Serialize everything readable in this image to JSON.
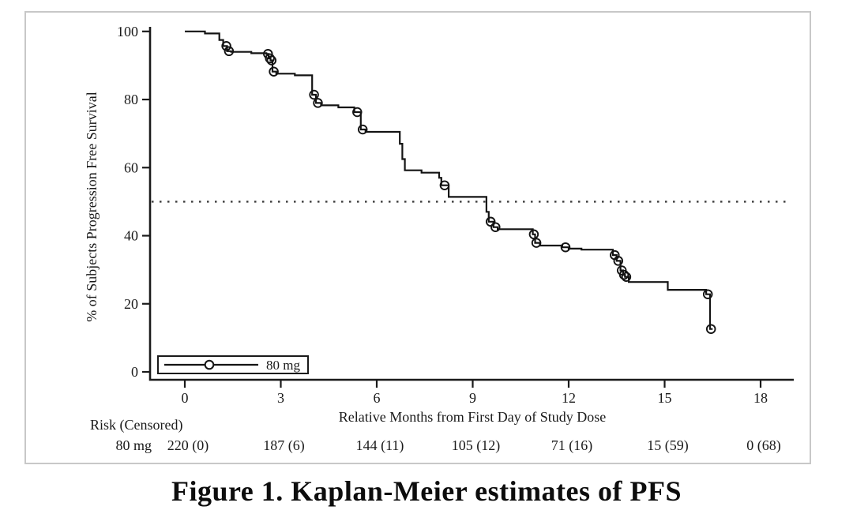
{
  "figure": {
    "caption": "Figure 1. Kaplan-Meier estimates of PFS"
  },
  "chart_data": {
    "type": "line",
    "subtype": "kaplan-meier-step-curve",
    "title": "",
    "xlabel": "Relative Months from First Day of Study Dose",
    "ylabel": "% of Subjects Progression Free Survival",
    "xlim": [
      -1.1,
      19.1
    ],
    "ylim": [
      0,
      103
    ],
    "x_ticks": [
      0,
      3,
      6,
      9,
      12,
      15,
      18
    ],
    "y_ticks": [
      0,
      20,
      40,
      60,
      80,
      100
    ],
    "grid": "off",
    "median_reference_line": {
      "y": 50,
      "style": "dotted"
    },
    "legend": {
      "position": "bottom-left-inside",
      "entries": [
        {
          "label": "80 mg",
          "marker": "open-circle-on-line"
        }
      ]
    },
    "series": [
      {
        "name": "80 mg",
        "steps": [
          [
            0,
            100
          ],
          [
            0.63,
            99.4
          ],
          [
            1.08,
            97.5
          ],
          [
            1.2,
            95.7
          ],
          [
            1.32,
            94.2
          ],
          [
            1.45,
            94.0
          ],
          [
            2.08,
            93.6
          ],
          [
            2.55,
            93.4
          ],
          [
            2.62,
            92.1
          ],
          [
            2.68,
            91.5
          ],
          [
            2.74,
            88.2
          ],
          [
            2.86,
            87.6
          ],
          [
            3.44,
            87.1
          ],
          [
            3.98,
            81.4
          ],
          [
            4.1,
            79.0
          ],
          [
            4.26,
            78.3
          ],
          [
            4.8,
            77.7
          ],
          [
            5.3,
            76.3
          ],
          [
            5.5,
            71.2
          ],
          [
            5.65,
            70.5
          ],
          [
            6.72,
            67.0
          ],
          [
            6.8,
            62.5
          ],
          [
            6.88,
            59.2
          ],
          [
            7.4,
            58.5
          ],
          [
            7.95,
            57.0
          ],
          [
            8.02,
            54.8
          ],
          [
            8.25,
            51.4
          ],
          [
            9.43,
            47.0
          ],
          [
            9.5,
            44.1
          ],
          [
            9.65,
            42.5
          ],
          [
            9.78,
            41.9
          ],
          [
            10.88,
            40.4
          ],
          [
            10.95,
            37.9
          ],
          [
            11.1,
            37.1
          ],
          [
            11.8,
            36.6
          ],
          [
            12.0,
            36.2
          ],
          [
            12.4,
            35.9
          ],
          [
            13.38,
            34.3
          ],
          [
            13.5,
            32.6
          ],
          [
            13.62,
            29.8
          ],
          [
            13.7,
            28.5
          ],
          [
            13.76,
            27.9
          ],
          [
            13.88,
            26.4
          ],
          [
            15.1,
            24.1
          ],
          [
            16.3,
            22.8
          ],
          [
            16.42,
            12.6
          ],
          [
            16.5,
            12.6
          ]
        ],
        "censor_marks": [
          [
            1.3,
            95.7
          ],
          [
            1.38,
            94.2
          ],
          [
            2.6,
            93.4
          ],
          [
            2.66,
            92.1
          ],
          [
            2.71,
            91.5
          ],
          [
            2.78,
            88.2
          ],
          [
            4.04,
            81.4
          ],
          [
            4.16,
            79.0
          ],
          [
            5.39,
            76.3
          ],
          [
            5.56,
            71.2
          ],
          [
            8.12,
            54.8
          ],
          [
            9.56,
            44.1
          ],
          [
            9.71,
            42.5
          ],
          [
            10.91,
            40.4
          ],
          [
            10.99,
            37.9
          ],
          [
            11.9,
            36.6
          ],
          [
            13.44,
            34.3
          ],
          [
            13.55,
            32.6
          ],
          [
            13.66,
            29.8
          ],
          [
            13.73,
            28.5
          ],
          [
            13.8,
            27.9
          ],
          [
            16.35,
            22.8
          ],
          [
            16.45,
            12.6
          ]
        ]
      }
    ],
    "risk_table": {
      "header": "Risk (Censored)",
      "row_label": "80 mg",
      "times": [
        0,
        3,
        6,
        9,
        12,
        15,
        18
      ],
      "values": [
        "220 (0)",
        "187 (6)",
        "144 (11)",
        "105 (12)",
        "71 (16)",
        "15 (59)",
        "0 (68)"
      ]
    }
  },
  "colors": {
    "curve": "#141414",
    "axis": "#1a1a1a",
    "median_line": "#3c3c3c",
    "frame_border": "#c8c8c8",
    "background": "#ffffff"
  }
}
